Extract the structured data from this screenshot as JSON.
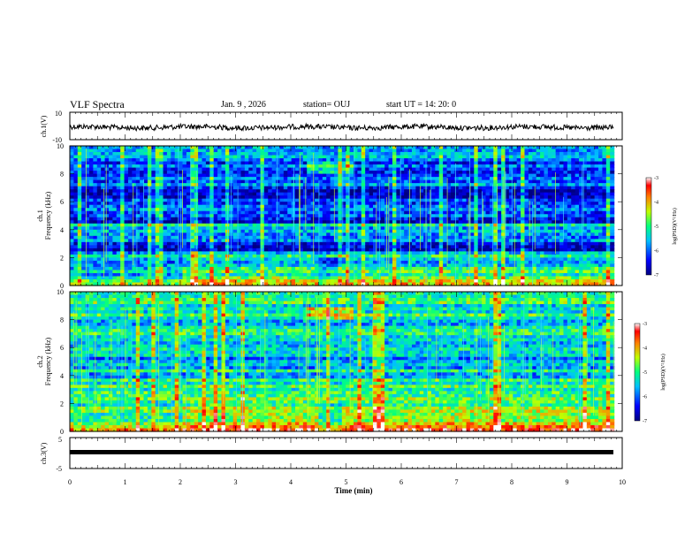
{
  "header": {
    "title": "VLF Spectra",
    "date": "Jan. 9 , 2026",
    "station": "station= OUJ",
    "start": "start  UT =  14: 20: 0"
  },
  "chart_data": {
    "type": "heatmap",
    "title": "VLF Spectra",
    "xlabel": "Time (min)",
    "x_ticks": [
      "0",
      "1",
      "2",
      "3",
      "4",
      "5",
      "6",
      "7",
      "8",
      "9",
      "10"
    ],
    "xlim": [
      0,
      10
    ],
    "panels": [
      {
        "name": "ch1-waveform",
        "kind": "line",
        "ylabel": "ch.1(V)",
        "ylim": [
          -10,
          10
        ],
        "ytick_labels": [
          "10",
          "-10"
        ]
      },
      {
        "name": "ch1-spectrogram",
        "kind": "heatmap",
        "ylabel": "ch.1\nFrequency (kHz)",
        "ylim": [
          0,
          10
        ],
        "ytick_labels": [
          "0",
          "2",
          "4",
          "6",
          "8",
          "10"
        ],
        "colorbar": {
          "label": "log(PSD)(V²/Hz)",
          "ticks": [
            "-3",
            "-4",
            "-5",
            "-6",
            "-7"
          ],
          "range": [
            -7,
            -3
          ]
        }
      },
      {
        "name": "ch2-spectrogram",
        "kind": "heatmap",
        "ylabel": "ch.2\nFrequency (kHz)",
        "ylim": [
          0,
          10
        ],
        "ytick_labels": [
          "0",
          "2",
          "4",
          "6",
          "8",
          "10"
        ],
        "colorbar": {
          "label": "log(PSD)(V²/Hz)",
          "ticks": [
            "-3",
            "-4",
            "-5",
            "-6",
            "-7"
          ],
          "range": [
            -7,
            -3
          ]
        }
      },
      {
        "name": "ch3-waveform",
        "kind": "line",
        "ylabel": "ch.3(V)",
        "ylim": [
          -5,
          5
        ],
        "ytick_labels": [
          "5",
          "-5"
        ]
      }
    ],
    "data_end_min": 9.85
  }
}
